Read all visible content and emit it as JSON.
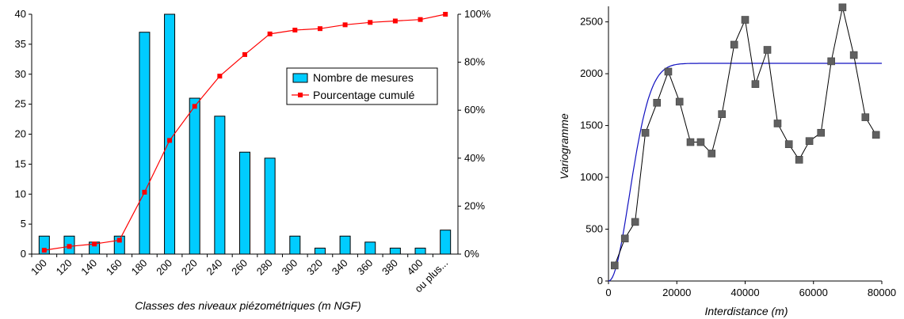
{
  "chart_data": [
    {
      "type": "bar",
      "xlabel": "Classes des niveaux piézométriques (m NGF)",
      "categories": [
        "100",
        "120",
        "140",
        "160",
        "180",
        "200",
        "220",
        "240",
        "260",
        "280",
        "300",
        "320",
        "340",
        "360",
        "380",
        "400",
        "ou plus..."
      ],
      "ylim": [
        0,
        40
      ],
      "yticks": [
        0,
        5,
        10,
        15,
        20,
        25,
        30,
        35,
        40
      ],
      "y2lim": [
        0,
        100
      ],
      "y2ticks": [
        "0%",
        "20%",
        "40%",
        "60%",
        "80%",
        "100%"
      ],
      "y2tick_values": [
        0,
        20,
        40,
        60,
        80,
        100
      ],
      "legend_position": "center-right",
      "series": [
        {
          "name": "Nombre de mesures",
          "kind": "bar",
          "color": "#00ccff",
          "values": [
            3,
            3,
            2,
            3,
            37,
            40,
            26,
            23,
            17,
            16,
            3,
            1,
            3,
            2,
            1,
            1,
            4
          ]
        },
        {
          "name": "Pourcentage cumulé",
          "kind": "line",
          "axis": "right",
          "color": "#ff0000",
          "values": [
            1.6,
            3.2,
            4.2,
            5.8,
            25.8,
            47.4,
            61.6,
            74.2,
            83.2,
            91.8,
            93.4,
            94.0,
            95.6,
            96.6,
            97.2,
            97.8,
            100
          ]
        }
      ]
    },
    {
      "type": "scatter",
      "xlabel": "Interdistance (m)",
      "ylabel": "Variogramme",
      "xlim": [
        0,
        80000
      ],
      "ylim": [
        0,
        2650
      ],
      "xticks": [
        0,
        20000,
        40000,
        60000,
        80000
      ],
      "yticks": [
        0,
        500,
        1000,
        1500,
        2000,
        2500
      ],
      "series": [
        {
          "kind": "points-line",
          "color": "#606060",
          "x": [
            1800,
            4800,
            7800,
            10800,
            14200,
            17500,
            20800,
            24000,
            27000,
            30200,
            33200,
            36800,
            40000,
            43000,
            46500,
            49500,
            52800,
            55800,
            58800,
            62200,
            65200,
            68500,
            71800,
            75200,
            78300
          ],
          "y": [
            150,
            410,
            570,
            1430,
            1720,
            2020,
            1730,
            1340,
            1340,
            1230,
            1610,
            2280,
            2520,
            1900,
            2230,
            1520,
            1320,
            1170,
            1350,
            1430,
            2120,
            2640,
            2180,
            1580,
            1410
          ]
        },
        {
          "kind": "model-curve",
          "color": "#1010c0",
          "model": "gaussian",
          "nugget": 0,
          "sill": 2100,
          "range": 15000
        }
      ]
    }
  ]
}
